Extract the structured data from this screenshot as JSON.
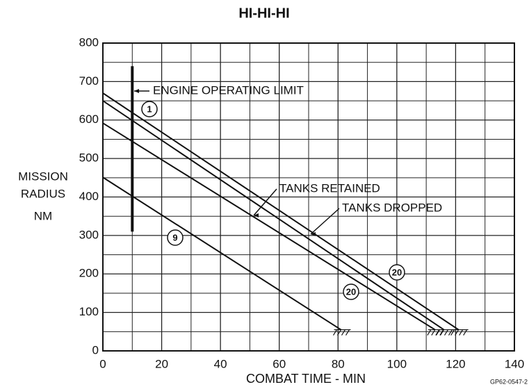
{
  "chart_data": {
    "type": "line",
    "title": "HI-HI-HI",
    "xlabel": "COMBAT TIME - MIN",
    "ylabel": [
      "MISSION",
      "RADIUS",
      "NM"
    ],
    "footer": "GP62-0547-2",
    "xlim": [
      0,
      140
    ],
    "xticks": [
      0,
      20,
      40,
      60,
      80,
      100,
      120,
      140
    ],
    "ylim": [
      0,
      800
    ],
    "yticks": [
      0,
      100,
      200,
      300,
      400,
      500,
      600,
      700,
      800
    ],
    "grid": true,
    "color": "#111111",
    "series": [
      {
        "x": [
          0,
          121
        ],
        "values": [
          670,
          55
        ]
      },
      {
        "x": [
          0,
          116
        ],
        "values": [
          650,
          55
        ]
      },
      {
        "x": [
          0,
          113
        ],
        "values": [
          592,
          55
        ]
      },
      {
        "x": [
          0,
          81
        ],
        "values": [
          451,
          55
        ]
      }
    ],
    "limit": {
      "x": 10,
      "y": [
        310,
        740
      ]
    },
    "annotations": [
      "ENGINE OPERATING LIMIT",
      "TANKS RETAINED",
      "TANKS DROPPED",
      "1",
      "9",
      "20",
      "20"
    ]
  }
}
